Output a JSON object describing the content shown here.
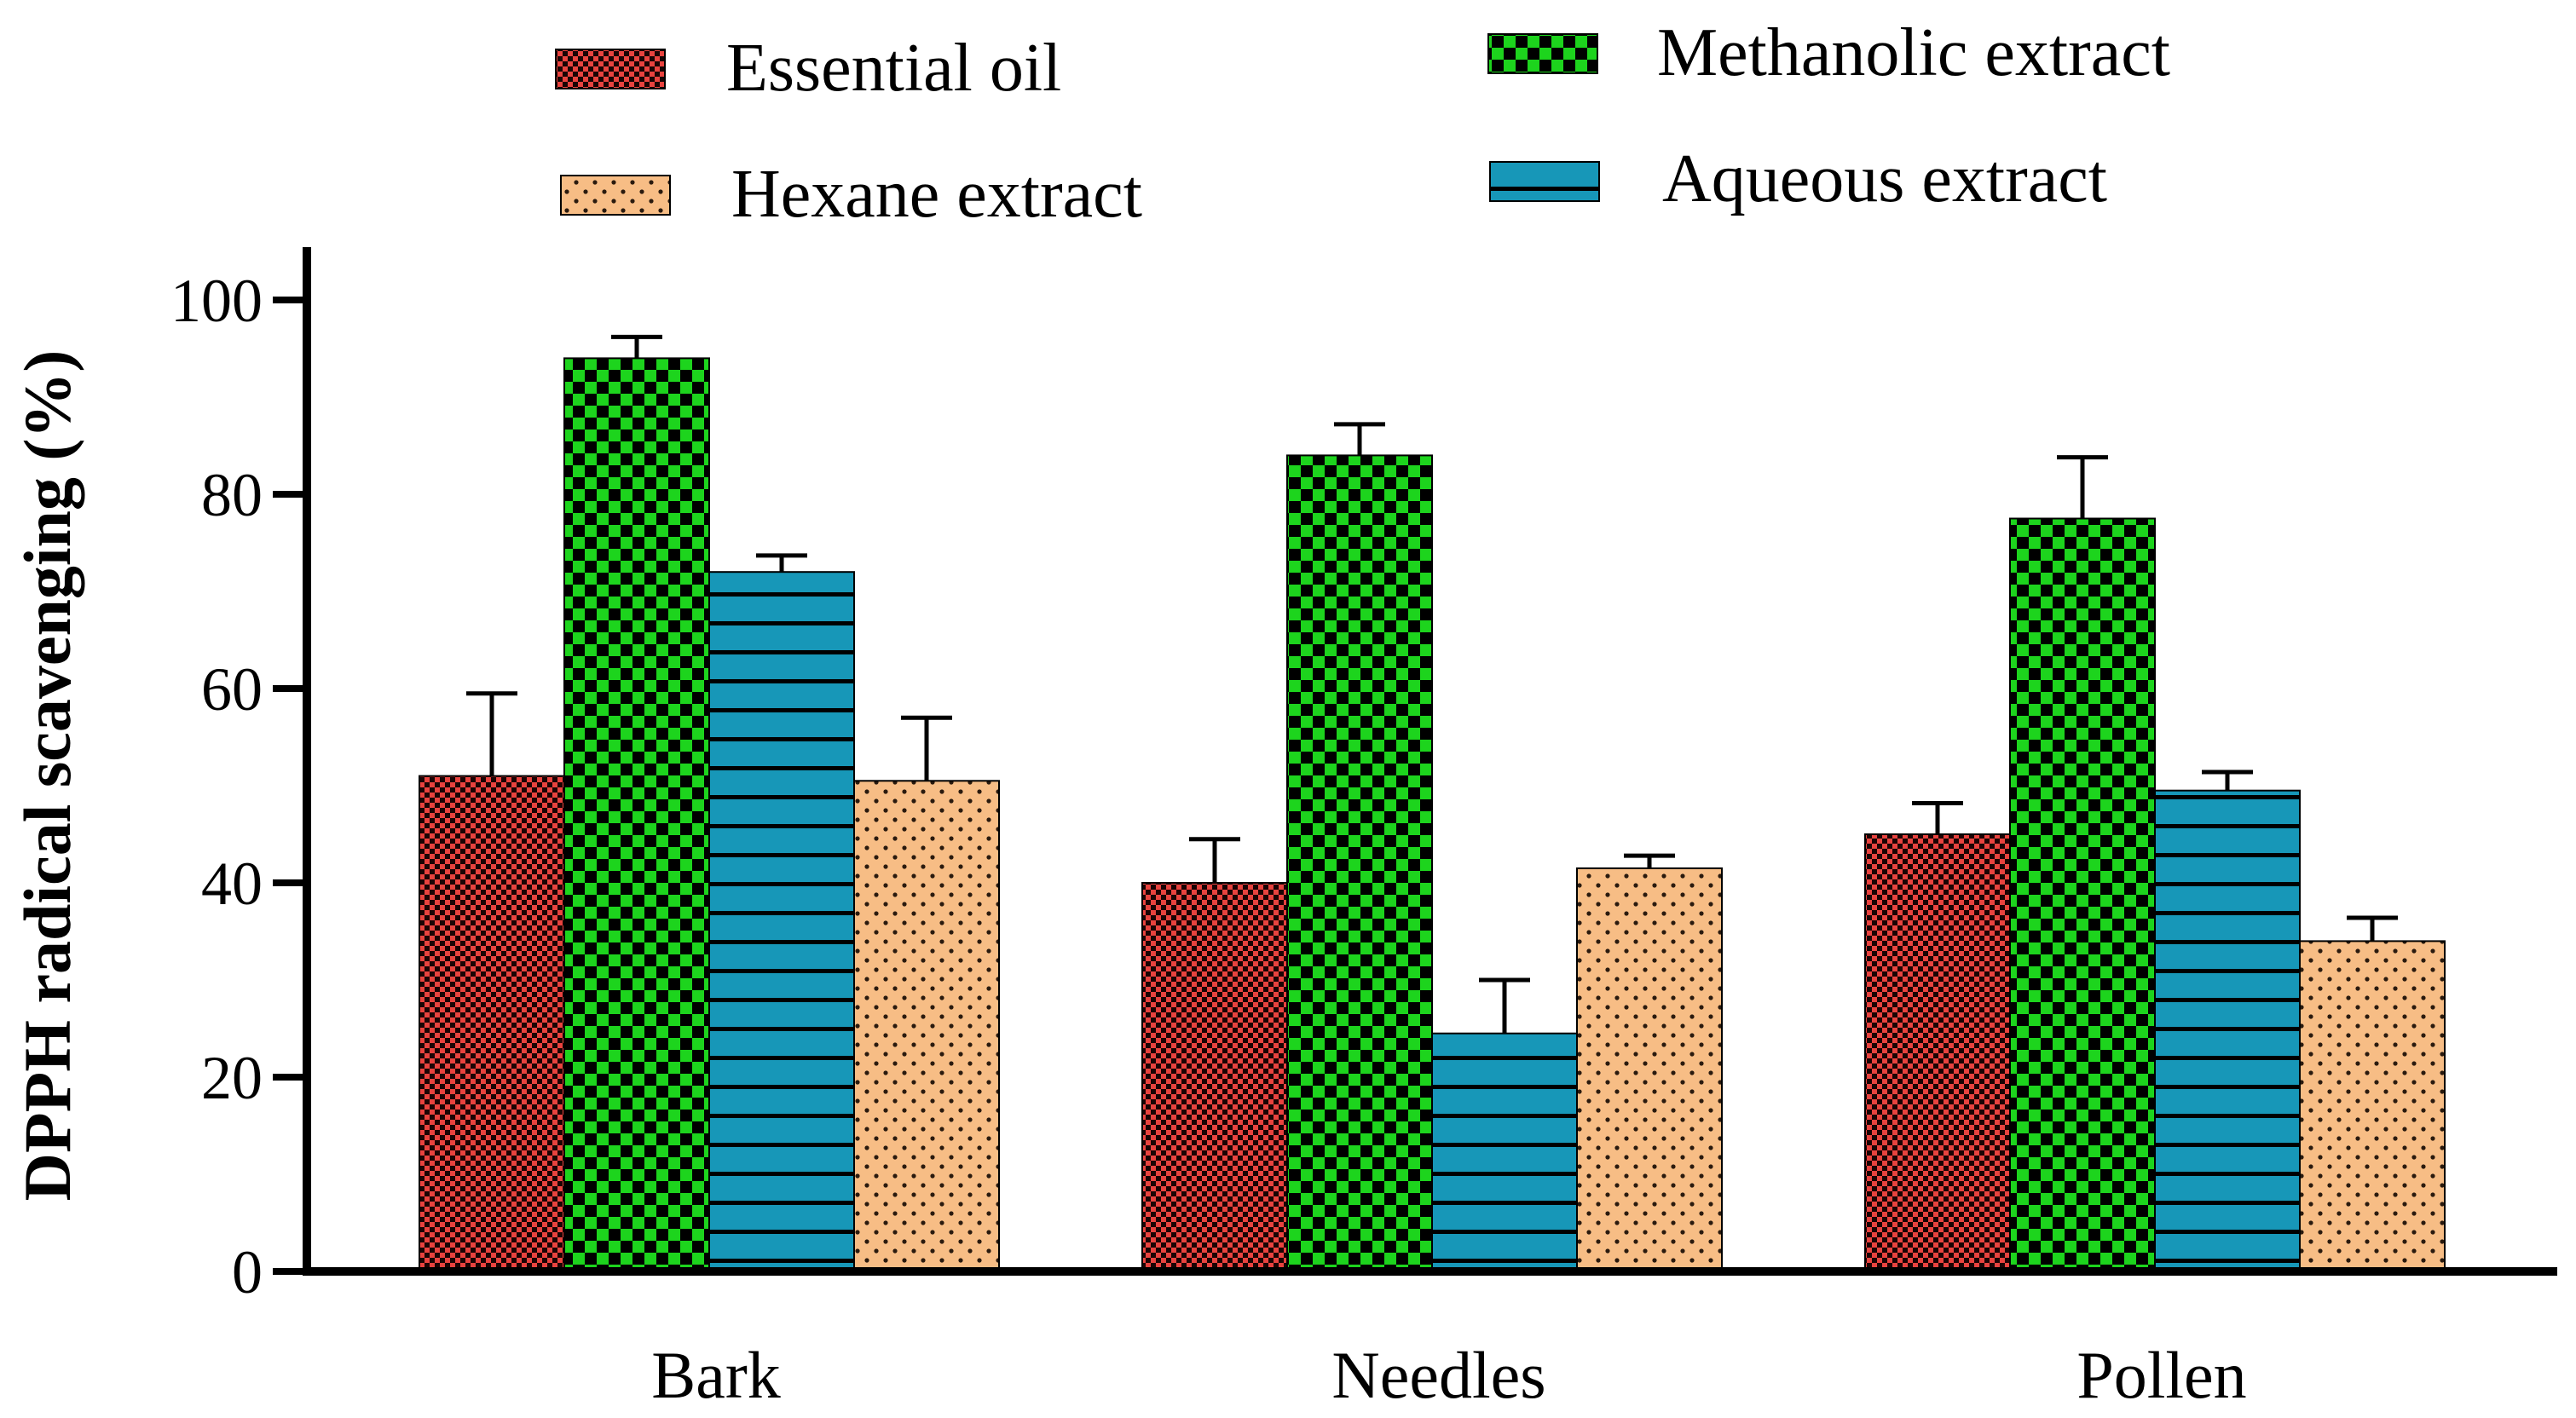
{
  "chart_data": {
    "type": "bar",
    "title": "",
    "xlabel": "",
    "ylabel": "DPPH radical scavenging (%)",
    "ylim": [
      0,
      100
    ],
    "yticks": [
      0,
      20,
      40,
      60,
      80,
      100
    ],
    "grid": false,
    "legend_position": "top",
    "categories": [
      "Bark",
      "Needles",
      "Pollen"
    ],
    "series": [
      {
        "name": "Essential oil",
        "pattern": "fine-checker",
        "color": "#e8433f",
        "values": [
          51,
          40,
          45
        ],
        "errors": [
          8.5,
          4.5,
          3.2
        ]
      },
      {
        "name": "Methanolic extract",
        "pattern": "checker",
        "color": "#1dd41d",
        "values": [
          94,
          84,
          77.5
        ],
        "errors": [
          2.2,
          3.2,
          6.3
        ]
      },
      {
        "name": "Aqueous extract",
        "pattern": "horizontal-lines",
        "color": "#1797b8",
        "values": [
          72,
          24.5,
          49.5
        ],
        "errors": [
          1.7,
          5.5,
          1.9
        ]
      },
      {
        "name": "Hexane extract",
        "pattern": "dots",
        "color": "#f7bd85",
        "values": [
          50.5,
          41.5,
          34
        ],
        "errors": [
          6.5,
          1.3,
          2.4
        ]
      }
    ]
  }
}
